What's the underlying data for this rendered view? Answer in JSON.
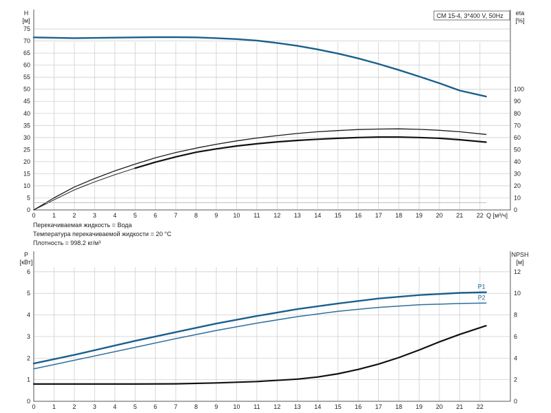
{
  "chart_data": [
    {
      "type": "line",
      "legend_text": "CM 15-4, 3*400 V, 50Hz",
      "x_unit": "Q [м³/ч]",
      "x_ticks": [
        0,
        1,
        2,
        3,
        4,
        5,
        6,
        7,
        8,
        9,
        10,
        11,
        12,
        13,
        14,
        15,
        16,
        17,
        18,
        19,
        20,
        21,
        22
      ],
      "xlim": [
        0,
        23.5
      ],
      "left_axis": {
        "label": "H",
        "unit": "[м]",
        "ticks": [
          0,
          5,
          10,
          15,
          20,
          25,
          30,
          35,
          40,
          45,
          50,
          55,
          60,
          65,
          70,
          75
        ],
        "ylim": [
          0,
          83
        ]
      },
      "right_axis": {
        "label": "eta",
        "unit": "[%]",
        "ticks": [
          0,
          10,
          20,
          30,
          40,
          50,
          60,
          70,
          80,
          90,
          100
        ],
        "ylim": [
          0,
          166
        ]
      },
      "series": [
        {
          "axis": "left",
          "color": "#1b5f8c",
          "width": 2.4,
          "x": [
            0,
            2,
            5,
            6,
            7,
            8,
            9,
            10,
            11,
            12,
            13,
            14,
            15,
            16,
            17,
            18,
            19,
            20,
            21,
            22.3
          ],
          "y": [
            71.5,
            71.2,
            71.5,
            71.6,
            71.6,
            71.5,
            71.2,
            70.8,
            70.2,
            69.2,
            68,
            66.5,
            64.8,
            62.8,
            60.5,
            58,
            55.3,
            52.5,
            49.5,
            47
          ]
        },
        {
          "axis": "left",
          "color": "#1a1a1a",
          "width": 1.3,
          "x": [
            0,
            1,
            2,
            3,
            4,
            5,
            6,
            7,
            8,
            9,
            10,
            11,
            12,
            13,
            14,
            15,
            16,
            17,
            18,
            19,
            20,
            21,
            22.3
          ],
          "y": [
            0,
            5,
            9.5,
            13,
            16.2,
            19,
            21.6,
            23.8,
            25.6,
            27.2,
            28.6,
            29.8,
            30.8,
            31.7,
            32.4,
            32.9,
            33.3,
            33.5,
            33.6,
            33.4,
            33,
            32.4,
            31.3
          ]
        },
        {
          "axis": "left",
          "color": "#1a1a1a",
          "width": 1.0,
          "x": [
            0,
            1,
            2,
            3,
            4,
            5
          ],
          "y": [
            0,
            4.2,
            8.3,
            11.6,
            14.6,
            17.3
          ]
        },
        {
          "axis": "left",
          "color": "#111111",
          "width": 2.2,
          "x": [
            5,
            6,
            7,
            8,
            9,
            10,
            11,
            12,
            13,
            14,
            15,
            16,
            17,
            18,
            19,
            20,
            21,
            22.3
          ],
          "y": [
            17.3,
            19.8,
            22,
            23.9,
            25.3,
            26.5,
            27.4,
            28.2,
            28.8,
            29.3,
            29.7,
            30,
            30.2,
            30.2,
            30,
            29.7,
            29.1,
            28.1
          ]
        },
        {
          "axis": "left",
          "color": "#aaaaaa",
          "width": 0.8,
          "x": [
            0,
            22.3
          ],
          "y": [
            3,
            3
          ]
        }
      ]
    },
    {
      "type": "line",
      "x_ticks": [
        0,
        1,
        2,
        3,
        4,
        5,
        6,
        7,
        8,
        9,
        10,
        11,
        12,
        13,
        14,
        15,
        16,
        17,
        18,
        19,
        20,
        21,
        22
      ],
      "xlim": [
        0,
        23.5
      ],
      "left_axis": {
        "label": "P",
        "unit": "[кВт]",
        "ticks": [
          0,
          1,
          2,
          3,
          4,
          5,
          6
        ],
        "ylim": [
          0,
          6.95
        ]
      },
      "right_axis": {
        "label": "NPSH",
        "unit": "[м]",
        "ticks": [
          0,
          2,
          4,
          6,
          8,
          10,
          12
        ],
        "ylim": [
          0,
          13.9
        ]
      },
      "series": [
        {
          "name": "P1",
          "axis": "left",
          "color": "#1b5f8c",
          "width": 2.4,
          "x": [
            0,
            2,
            5,
            7,
            9,
            11,
            13,
            15,
            17,
            19,
            21,
            22.3
          ],
          "y": [
            1.75,
            2.15,
            2.8,
            3.2,
            3.6,
            3.95,
            4.27,
            4.53,
            4.76,
            4.92,
            5.02,
            5.05
          ]
        },
        {
          "name": "P2",
          "axis": "left",
          "color": "#2d6f9b",
          "width": 1.5,
          "x": [
            0,
            2,
            5,
            7,
            9,
            11,
            13,
            15,
            17,
            19,
            21,
            22.3
          ],
          "y": [
            1.5,
            1.9,
            2.5,
            2.9,
            3.28,
            3.62,
            3.92,
            4.17,
            4.35,
            4.47,
            4.53,
            4.55
          ]
        },
        {
          "axis": "right",
          "color": "#111111",
          "width": 2.2,
          "x": [
            0,
            5,
            7,
            9,
            11,
            13,
            14,
            15,
            16,
            17,
            18,
            19,
            20,
            21,
            22.3
          ],
          "y": [
            1.6,
            1.6,
            1.62,
            1.7,
            1.83,
            2.05,
            2.25,
            2.55,
            2.95,
            3.45,
            4.05,
            4.75,
            5.5,
            6.2,
            7
          ]
        }
      ]
    }
  ],
  "notes": [
    "Перекачиваемая жидкость = Вода",
    "Температура перекачиваемой жидкости = 20 °C",
    "Плотность = 998.2 кг/м³"
  ]
}
